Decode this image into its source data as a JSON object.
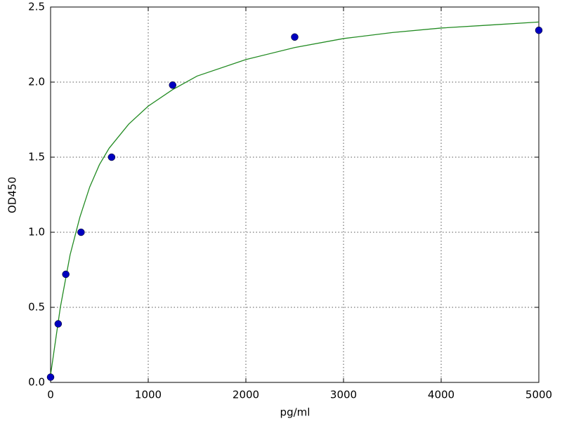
{
  "chart_data": {
    "type": "scatter",
    "xlabel": "pg/ml",
    "ylabel": "OD450",
    "xlim": [
      0,
      5000
    ],
    "ylim": [
      0,
      2.5
    ],
    "xticks": [
      0,
      1000,
      2000,
      3000,
      4000,
      5000
    ],
    "yticks": [
      {
        "value": 0,
        "label": "0.0"
      },
      0.5,
      {
        "value": 1,
        "label": "1.0"
      },
      1.5,
      {
        "value": 2,
        "label": "2.0"
      },
      2.5
    ],
    "grid": true,
    "series": [
      {
        "type": "line",
        "color": "#228b22",
        "x": [
          0,
          100,
          200,
          300,
          400,
          500,
          600,
          800,
          1000,
          1250,
          1500,
          2000,
          2500,
          3000,
          3500,
          4000,
          4500,
          5000
        ],
        "values": [
          0.05,
          0.5,
          0.85,
          1.1,
          1.3,
          1.45,
          1.56,
          1.72,
          1.84,
          1.95,
          2.04,
          2.15,
          2.23,
          2.29,
          2.33,
          2.36,
          2.38,
          2.4
        ]
      },
      {
        "type": "scatter",
        "color": "#0000bf",
        "x": [
          0,
          78,
          156,
          312,
          625,
          1250,
          2500,
          5000
        ],
        "values": [
          0.035,
          0.39,
          0.72,
          1.0,
          1.5,
          1.98,
          2.3,
          2.345
        ]
      }
    ]
  }
}
